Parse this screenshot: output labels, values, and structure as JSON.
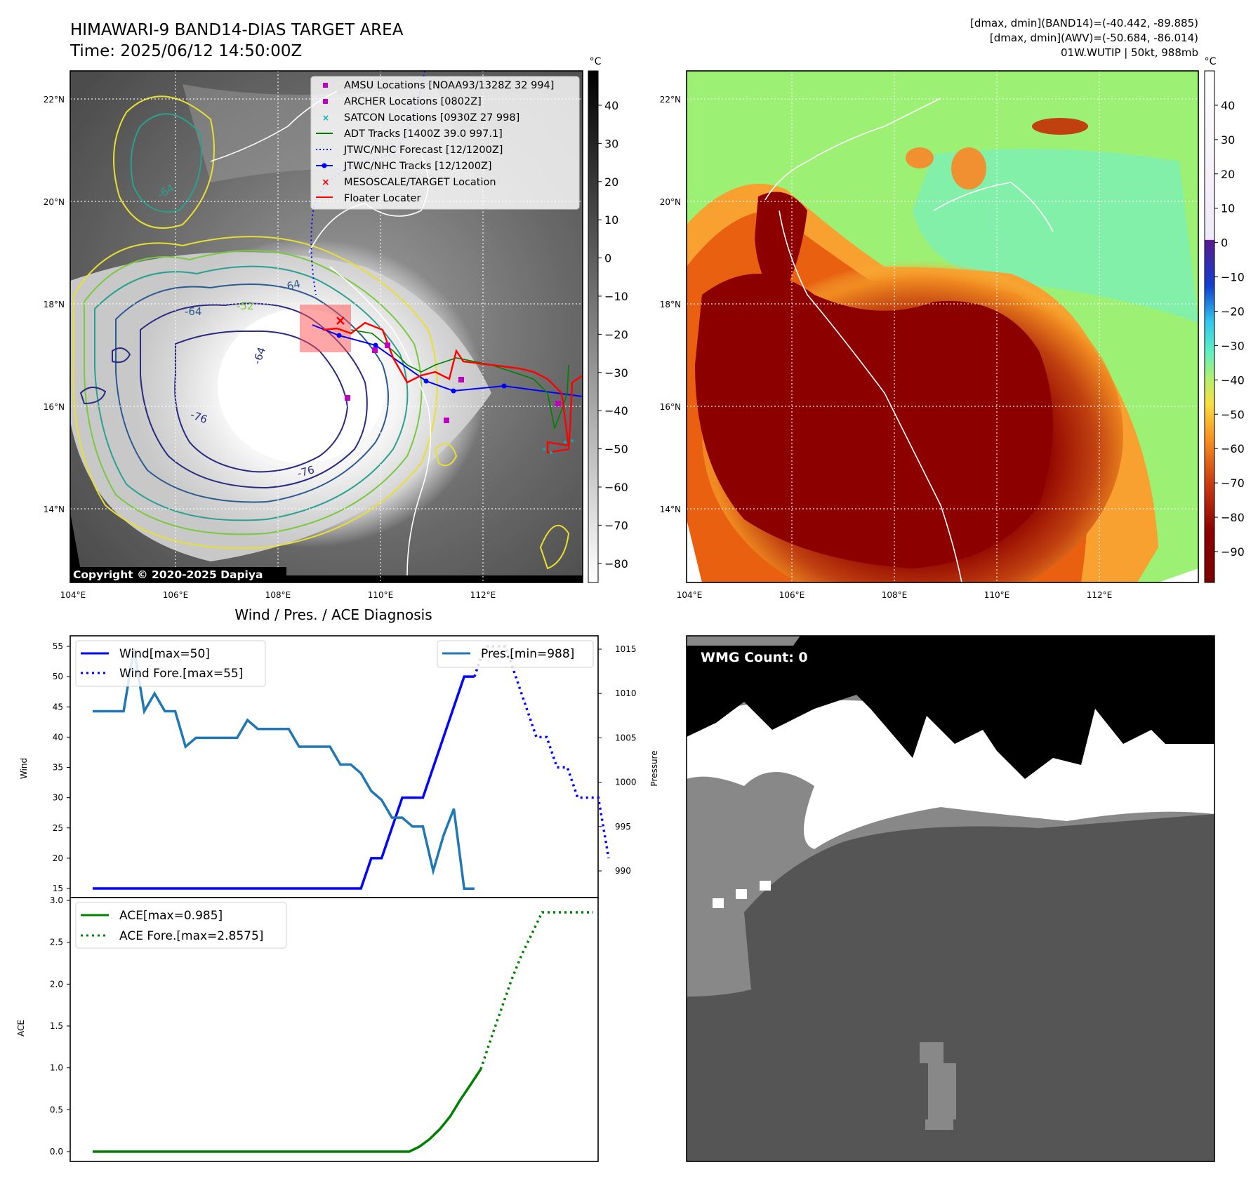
{
  "header": {
    "title_line1": "HIMAWARI-9 BAND14-DIAS TARGET AREA",
    "title_line2": "Time: 2025/06/12 14:50:00Z",
    "right_line1": "[dmax, dmin](BAND14)=(-40.442, -89.885)",
    "right_line2": "[dmax, dmin](AWV)=(-50.684, -86.014)",
    "right_line3": "01W.WUTIP | 50kt, 988mb"
  },
  "maps": {
    "lat_labels": [
      "22°N",
      "20°N",
      "18°N",
      "16°N",
      "14°N"
    ],
    "lon_labels": [
      "104°E",
      "106°E",
      "108°E",
      "110°E",
      "112°E"
    ],
    "copyright": "Copyright © 2020-2025 Dapiya",
    "contour_labels": [
      "-64",
      "-64",
      "-64",
      "-76",
      "-76",
      "-64",
      "-52"
    ],
    "colorbar_unit": "°C",
    "left_colorbar_ticks": [
      "40",
      "30",
      "20",
      "10",
      "0",
      "−10",
      "−20",
      "−30",
      "−40",
      "−50",
      "−60",
      "−70",
      "−80"
    ],
    "right_colorbar_ticks": [
      "40",
      "30",
      "20",
      "10",
      "0",
      "−10",
      "−20",
      "−30",
      "−40",
      "−50",
      "−60",
      "−70",
      "−80",
      "−90"
    ]
  },
  "legend": {
    "items": [
      {
        "label": "AMSU Locations [NOAA93/1328Z 32 994]",
        "color": "#c000c0",
        "marker": "square"
      },
      {
        "label": "ARCHER Locations [0802Z]",
        "color": "#c000c0",
        "marker": "square"
      },
      {
        "label": "SATCON Locations [0930Z 27 998]",
        "color": "#00b0b0",
        "marker": "x"
      },
      {
        "label": "ADT Tracks [1400Z 39.0 997.1]",
        "color": "#008000",
        "marker": "line"
      },
      {
        "label": "JTWC/NHC Forecast [12/1200Z]",
        "color": "#0000ff",
        "marker": "dotted"
      },
      {
        "label": "JTWC/NHC Tracks [12/1200Z]",
        "color": "#0000ff",
        "marker": "line-dot"
      },
      {
        "label": "MESOSCALE/TARGET Location",
        "color": "#ff0000",
        "marker": "x"
      },
      {
        "label": "Floater Locater",
        "color": "#ff0000",
        "marker": "line"
      }
    ]
  },
  "diag": {
    "title": "Wind / Pres. / ACE Diagnosis",
    "wind_label": "Wind",
    "pressure_label": "Pressure",
    "ace_label": "ACE",
    "legend_wind": "Wind[max=50]",
    "legend_wind_fore": "Wind Fore.[max=55]",
    "legend_pres": "Pres.[min=988]",
    "legend_ace": "ACE[max=0.985]",
    "legend_ace_fore": "ACE Fore.[max=2.8575]",
    "wind_ticks": [
      "55",
      "50",
      "45",
      "40",
      "35",
      "30",
      "25",
      "20",
      "15"
    ],
    "pres_ticks": [
      "1015",
      "1010",
      "1005",
      "1000",
      "995",
      "990"
    ],
    "ace_ticks": [
      "3.0",
      "2.5",
      "2.0",
      "1.5",
      "1.0",
      "0.5",
      "0.0"
    ]
  },
  "wmg": {
    "badge": "WMG Count: 0"
  },
  "colors": {
    "wind": "#0000ff",
    "pressure": "#1f77b4",
    "ace": "#008000"
  },
  "chart_data": [
    {
      "type": "line",
      "title": "Wind / Pres. / ACE Diagnosis",
      "ylabel": "Wind",
      "ylim": [
        14,
        56
      ],
      "series": [
        {
          "name": "Wind[max=50]",
          "values": [
            15,
            15,
            15,
            15,
            15,
            15,
            15,
            15,
            15,
            15,
            15,
            15,
            15,
            15,
            15,
            15,
            15,
            15,
            15,
            15,
            15,
            15,
            15,
            15,
            15,
            15,
            15,
            20,
            20,
            25,
            30,
            30,
            30,
            35,
            40,
            45,
            50,
            50
          ]
        },
        {
          "name": "Wind Fore.[max=55]",
          "values": [
            50,
            55,
            55,
            55,
            50,
            45,
            40,
            40,
            35,
            35,
            30,
            30,
            30,
            20
          ],
          "x_start": 37
        }
      ]
    },
    {
      "type": "line",
      "ylabel": "Pressure",
      "ylim": [
        987,
        1016
      ],
      "series": [
        {
          "name": "Pres.[min=988]",
          "values": [
            1008,
            1008,
            1008,
            1008,
            1015,
            1008,
            1010,
            1008,
            1008,
            1004,
            1005,
            1005,
            1005,
            1005,
            1005,
            1007,
            1006,
            1006,
            1006,
            1006,
            1004,
            1004,
            1004,
            1004,
            1002,
            1002,
            1001,
            999,
            998,
            996,
            996,
            995,
            995,
            990,
            994,
            997,
            988,
            988
          ]
        }
      ]
    },
    {
      "type": "line",
      "ylabel": "ACE",
      "ylim": [
        -0.1,
        3.0
      ],
      "series": [
        {
          "name": "ACE[max=0.985]",
          "values": [
            0,
            0,
            0,
            0,
            0,
            0,
            0,
            0,
            0,
            0,
            0,
            0,
            0,
            0,
            0,
            0,
            0,
            0,
            0,
            0,
            0,
            0,
            0,
            0,
            0,
            0,
            0,
            0,
            0,
            0,
            0,
            0,
            0.06,
            0.15,
            0.27,
            0.42,
            0.62,
            0.8,
            0.985
          ]
        },
        {
          "name": "ACE Fore.[max=2.8575]",
          "values": [
            0.985,
            1.35,
            1.7,
            2.05,
            2.35,
            2.6,
            2.8575,
            2.8575,
            2.8575,
            2.8575,
            2.8575,
            2.8575
          ],
          "x_start": 38
        }
      ]
    }
  ]
}
